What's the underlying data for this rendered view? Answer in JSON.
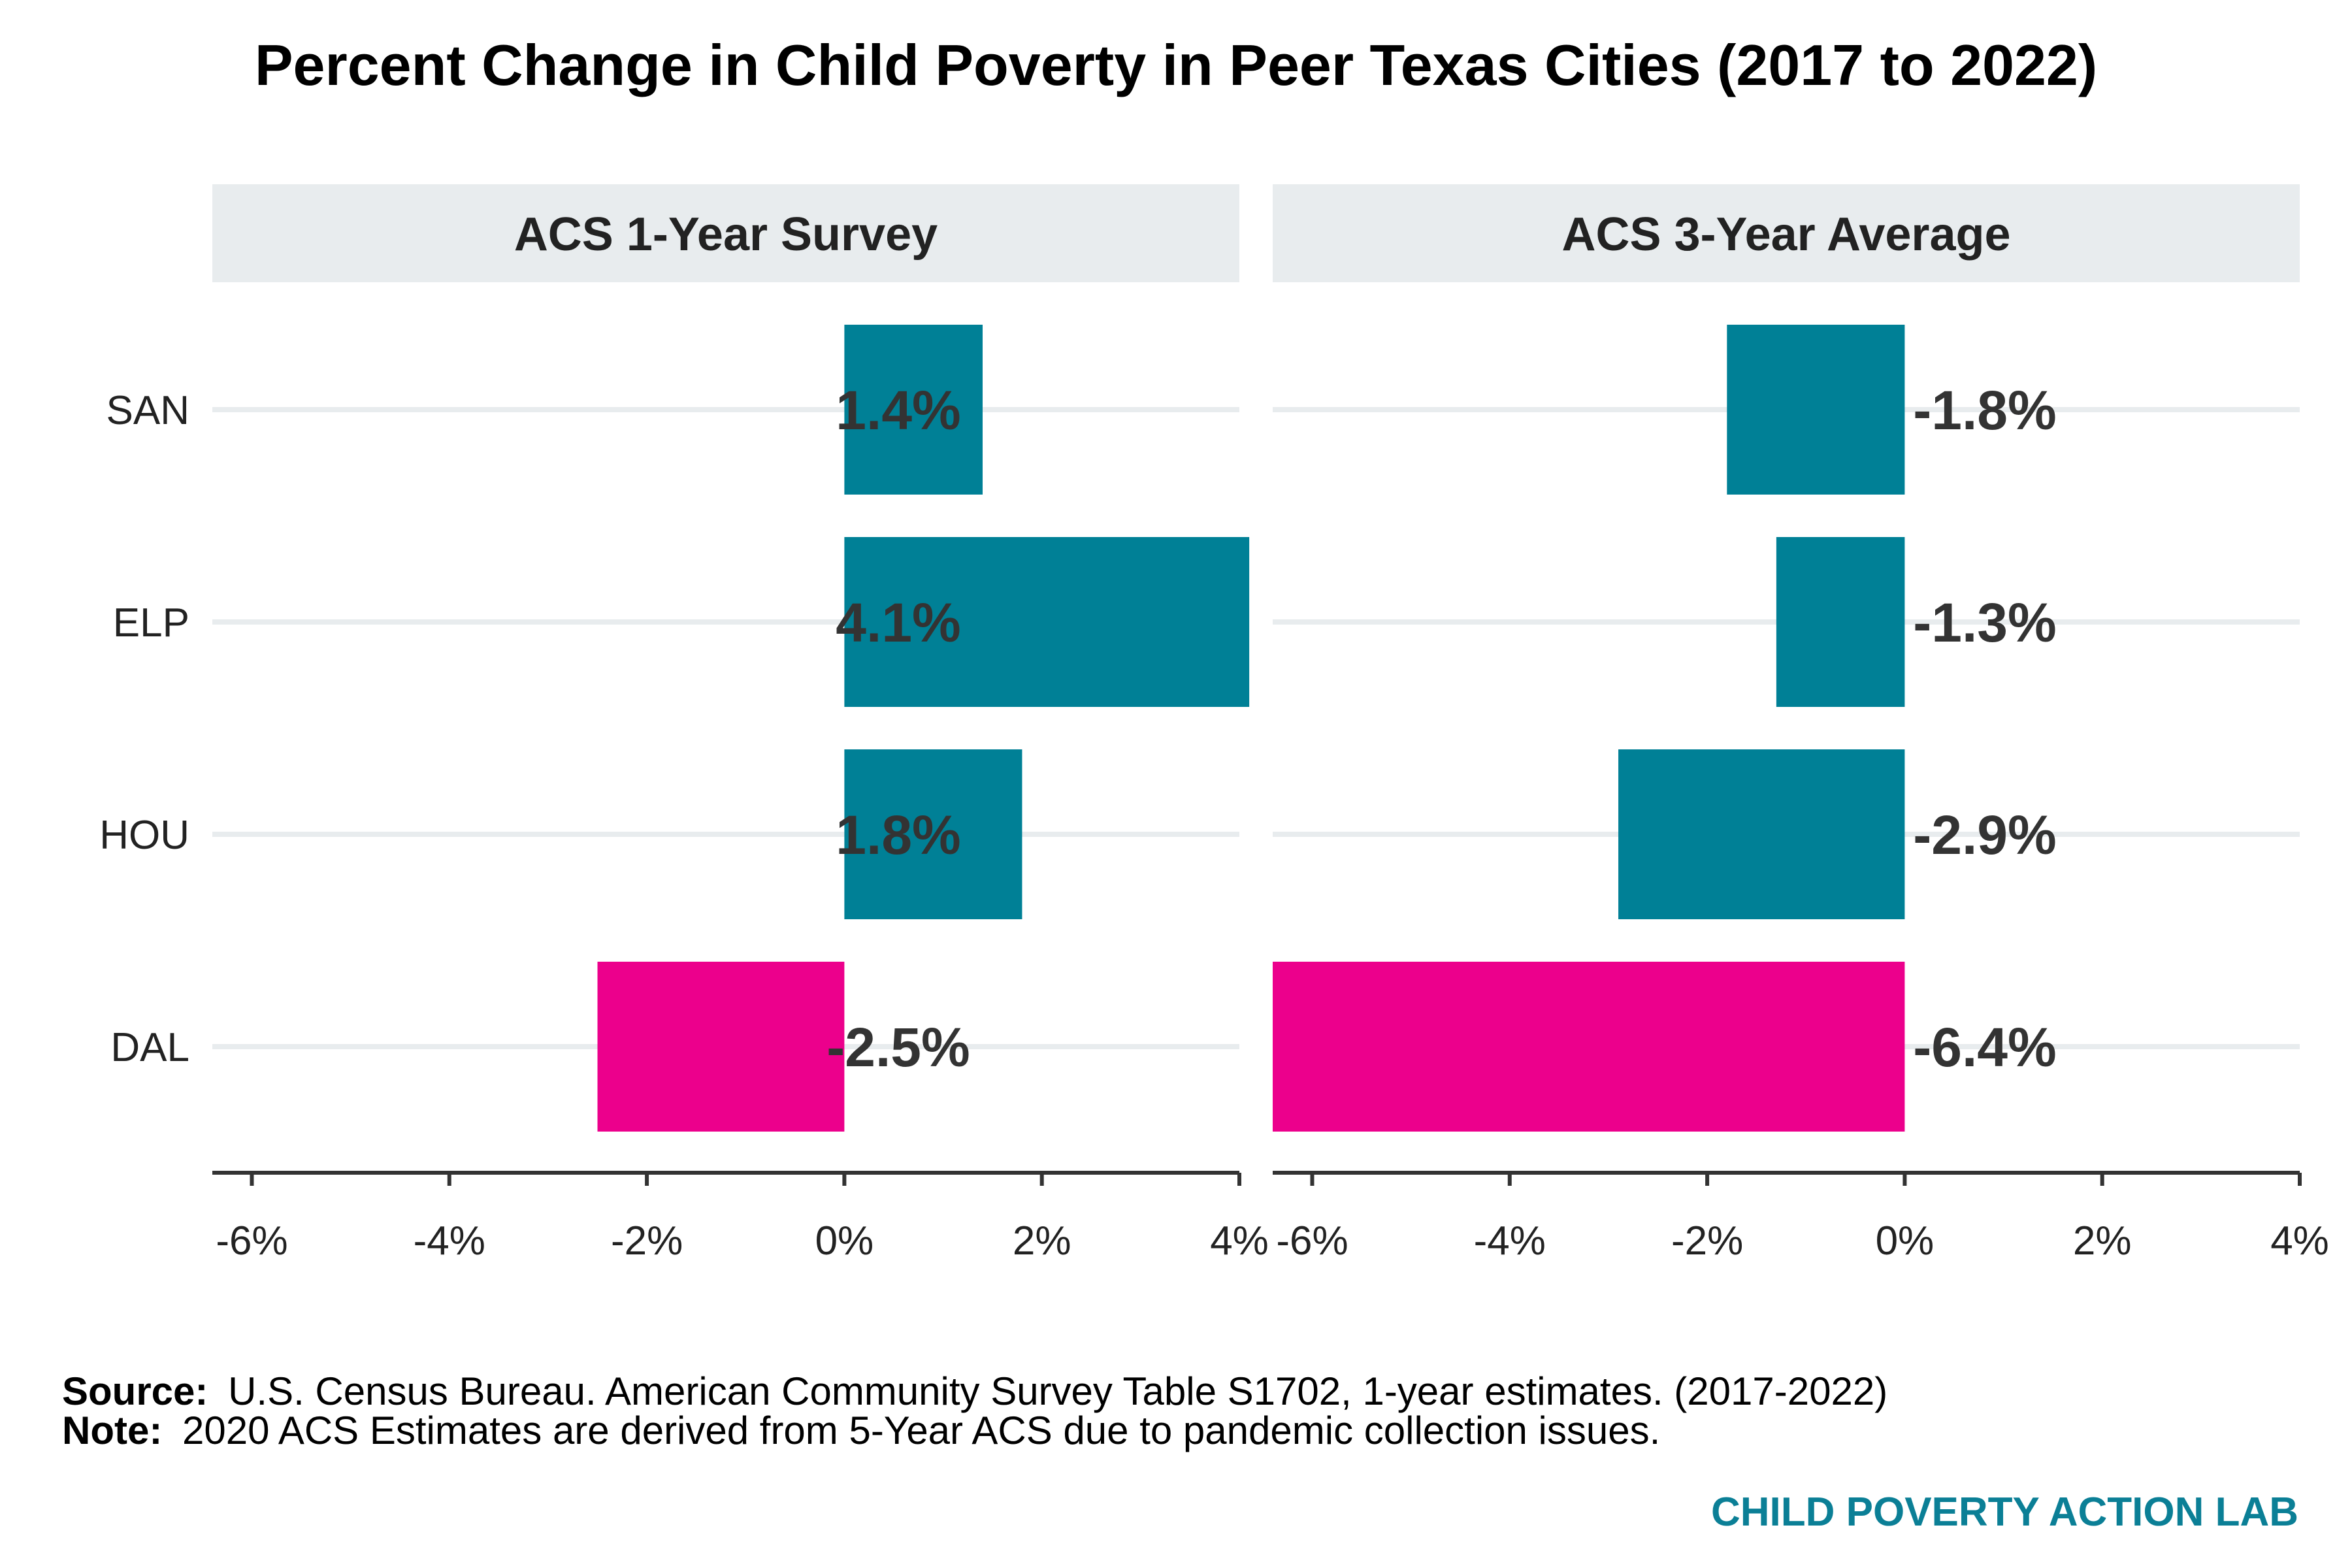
{
  "chart_data": {
    "type": "bar",
    "orientation": "horizontal",
    "title": "Percent Change in Child Poverty in Peer Texas Cities (2017 to 2022)",
    "categories": [
      "SAN",
      "ELP",
      "HOU",
      "DAL"
    ],
    "xlim": [
      -6.4,
      4.0
    ],
    "x_ticks": [
      -6,
      -4,
      -2,
      0,
      2,
      4
    ],
    "x_tick_labels": [
      "-6%",
      "-4%",
      "-2%",
      "0%",
      "2%",
      "4%"
    ],
    "grid": true,
    "legend": "none",
    "panels": [
      {
        "name": "ACS 1-Year Survey",
        "values": [
          1.4,
          4.1,
          1.8,
          -2.5
        ],
        "value_labels": [
          "1.4%",
          "4.1%",
          "1.8%",
          "-2.5%"
        ],
        "highlight": [
          false,
          false,
          false,
          true
        ]
      },
      {
        "name": "ACS 3-Year Average",
        "values": [
          -1.8,
          -1.3,
          -2.9,
          -6.4
        ],
        "value_labels": [
          "-1.8%",
          "-1.3%",
          "-2.9%",
          "-6.4%"
        ],
        "highlight": [
          false,
          false,
          false,
          true
        ]
      }
    ]
  },
  "colors": {
    "bar_default": "#008096",
    "bar_highlight": "#ec008c",
    "brand": "#0b7f96"
  },
  "footer": {
    "source_label": "Source:",
    "source_text": "U.S. Census Bureau. American Community Survey Table S1702, 1-year estimates. (2017-2022)",
    "note_label": "Note:",
    "note_text": "2020 ACS Estimates are derived from 5-Year ACS due to pandemic collection issues.",
    "brand": "CHILD POVERTY ACTION LAB"
  }
}
